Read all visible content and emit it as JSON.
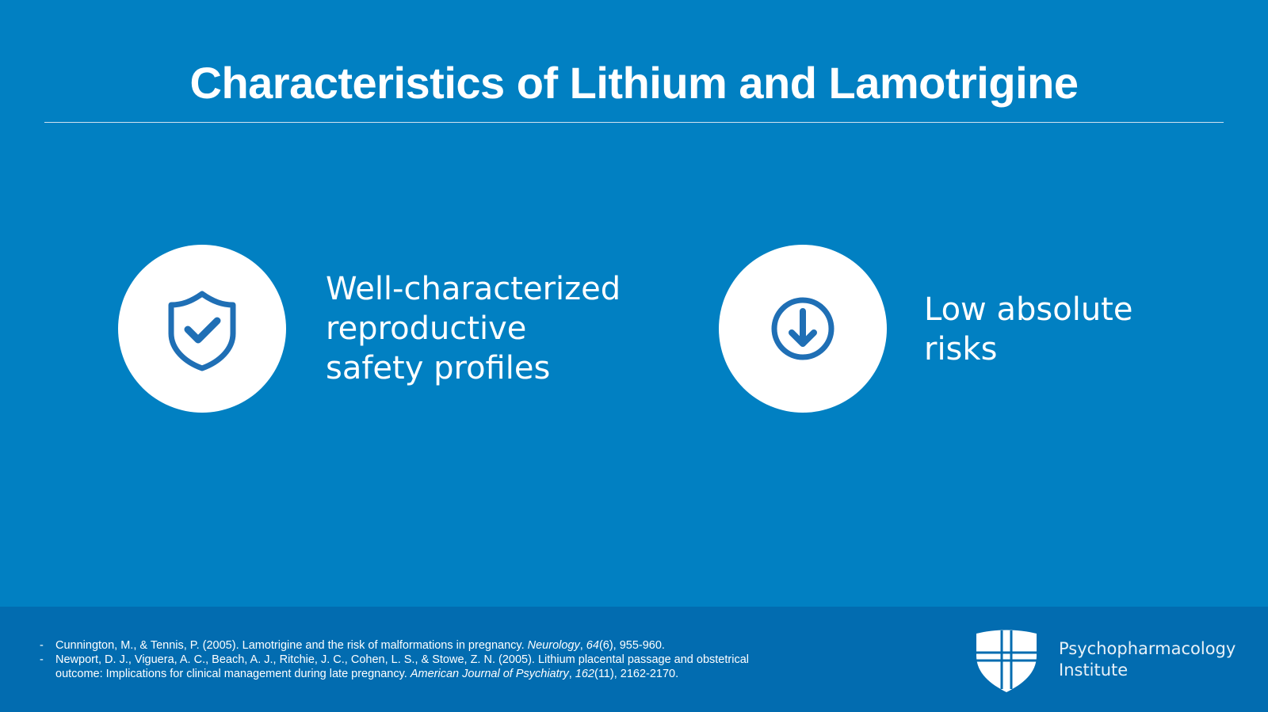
{
  "header": {
    "title": "Characteristics of Lithium and Lamotrigine"
  },
  "cards": [
    {
      "lines": [
        "Well-characterized",
        "reproductive",
        "safety profiles"
      ]
    },
    {
      "lines": [
        "Low absolute",
        "risks"
      ]
    }
  ],
  "references": [
    {
      "bullet": "-",
      "segments": [
        {
          "text": "Cunnington, M., & Tennis, P. (2005). Lamotrigine and the risk of malformations in pregnancy. "
        },
        {
          "text": "Neurology",
          "italic": true
        },
        {
          "text": ", "
        },
        {
          "text": "64",
          "italic": true
        },
        {
          "text": "(6), 955-960."
        }
      ]
    },
    {
      "bullet": "-",
      "segments": [
        {
          "text": "Newport, D. J., Viguera, A. C., Beach, A. J., Ritchie, J. C., Cohen, L. S., & Stowe, Z. N. (2005). Lithium placental passage and obstetrical outcome: Implications for clinical management during late pregnancy. "
        },
        {
          "text": "American Journal of Psychiatry",
          "italic": true
        },
        {
          "text": ", "
        },
        {
          "text": "162",
          "italic": true
        },
        {
          "text": "(11), 2162-2170."
        }
      ]
    }
  ],
  "logo": {
    "lines": [
      "Psychopharmacology",
      "Institute"
    ]
  }
}
